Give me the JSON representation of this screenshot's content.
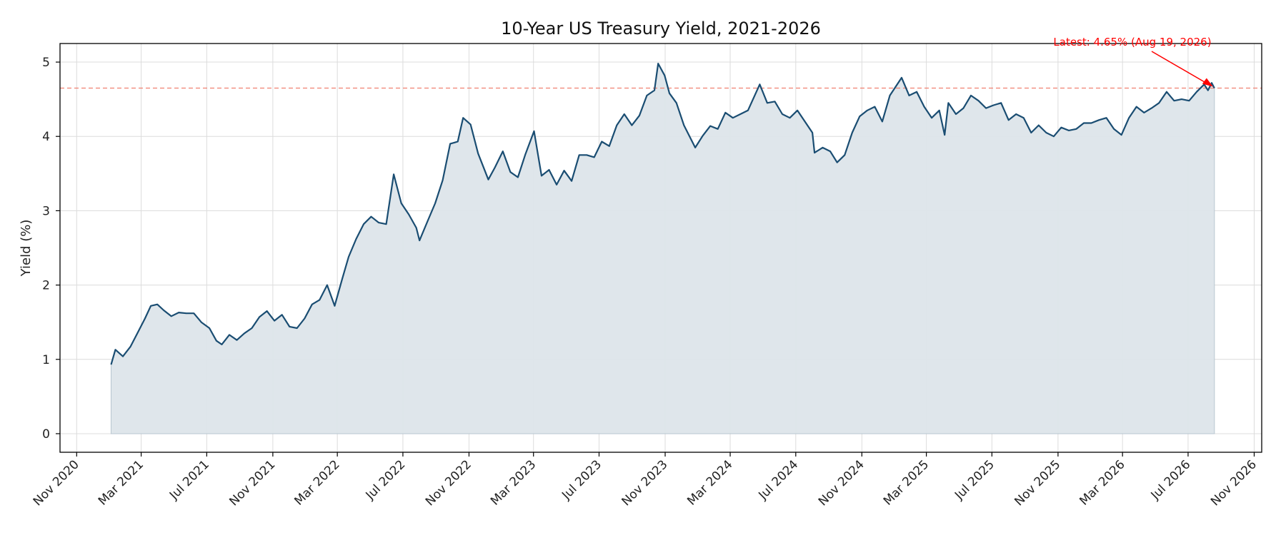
{
  "chart_data": {
    "type": "area",
    "title": "10-Year US Treasury Yield, 2021-2026",
    "xlabel": "",
    "ylabel": "Yield (%)",
    "x_ticks": [
      "Nov 2020",
      "Mar 2021",
      "Jul 2021",
      "Nov 2021",
      "Mar 2022",
      "Jul 2022",
      "Nov 2022",
      "Mar 2023",
      "Jul 2023",
      "Nov 2023",
      "Mar 2024",
      "Jul 2024",
      "Nov 2024",
      "Mar 2025",
      "Jul 2025",
      "Nov 2025",
      "Mar 2026",
      "Jul 2026",
      "Nov 2026"
    ],
    "x_tick_dates": [
      "2020-11-01",
      "2021-03-01",
      "2021-07-01",
      "2021-11-01",
      "2022-03-01",
      "2022-07-01",
      "2022-11-01",
      "2023-03-01",
      "2023-07-01",
      "2023-11-01",
      "2024-03-01",
      "2024-07-01",
      "2024-11-01",
      "2025-03-01",
      "2025-07-01",
      "2025-11-01",
      "2026-03-01",
      "2026-07-01",
      "2026-11-01"
    ],
    "y_ticks": [
      0,
      1,
      2,
      3,
      4,
      5
    ],
    "xlim": [
      "2020-10-01",
      "2026-11-15"
    ],
    "ylim": [
      -0.25,
      5.25
    ],
    "grid": true,
    "series": [
      {
        "color": "#1a4d72",
        "fill_color": "#dde5ea",
        "points": [
          [
            "2021-01-04",
            0.93
          ],
          [
            "2021-01-12",
            1.13
          ],
          [
            "2021-01-26",
            1.04
          ],
          [
            "2021-02-09",
            1.17
          ],
          [
            "2021-02-24",
            1.38
          ],
          [
            "2021-03-08",
            1.55
          ],
          [
            "2021-03-19",
            1.72
          ],
          [
            "2021-03-31",
            1.74
          ],
          [
            "2021-04-12",
            1.66
          ],
          [
            "2021-04-26",
            1.58
          ],
          [
            "2021-05-10",
            1.63
          ],
          [
            "2021-05-24",
            1.62
          ],
          [
            "2021-06-07",
            1.62
          ],
          [
            "2021-06-21",
            1.5
          ],
          [
            "2021-07-06",
            1.42
          ],
          [
            "2021-07-19",
            1.25
          ],
          [
            "2021-07-29",
            1.2
          ],
          [
            "2021-08-12",
            1.33
          ],
          [
            "2021-08-26",
            1.26
          ],
          [
            "2021-09-09",
            1.35
          ],
          [
            "2021-09-23",
            1.42
          ],
          [
            "2021-10-07",
            1.57
          ],
          [
            "2021-10-21",
            1.65
          ],
          [
            "2021-11-04",
            1.52
          ],
          [
            "2021-11-18",
            1.6
          ],
          [
            "2021-12-02",
            1.44
          ],
          [
            "2021-12-16",
            1.42
          ],
          [
            "2021-12-30",
            1.55
          ],
          [
            "2022-01-13",
            1.74
          ],
          [
            "2022-01-27",
            1.8
          ],
          [
            "2022-02-10",
            2.0
          ],
          [
            "2022-02-24",
            1.72
          ],
          [
            "2022-03-10",
            2.08
          ],
          [
            "2022-03-22",
            2.38
          ],
          [
            "2022-04-05",
            2.62
          ],
          [
            "2022-04-19",
            2.82
          ],
          [
            "2022-05-03",
            2.92
          ],
          [
            "2022-05-17",
            2.84
          ],
          [
            "2022-05-31",
            2.82
          ],
          [
            "2022-06-14",
            3.49
          ],
          [
            "2022-06-28",
            3.1
          ],
          [
            "2022-07-12",
            2.95
          ],
          [
            "2022-07-26",
            2.77
          ],
          [
            "2022-08-01",
            2.6
          ],
          [
            "2022-08-16",
            2.86
          ],
          [
            "2022-08-30",
            3.1
          ],
          [
            "2022-09-13",
            3.41
          ],
          [
            "2022-09-27",
            3.9
          ],
          [
            "2022-10-11",
            3.93
          ],
          [
            "2022-10-21",
            4.25
          ],
          [
            "2022-11-04",
            4.16
          ],
          [
            "2022-11-18",
            3.77
          ],
          [
            "2022-12-07",
            3.42
          ],
          [
            "2022-12-19",
            3.58
          ],
          [
            "2023-01-03",
            3.8
          ],
          [
            "2023-01-17",
            3.52
          ],
          [
            "2023-01-31",
            3.45
          ],
          [
            "2023-02-14",
            3.76
          ],
          [
            "2023-03-02",
            4.07
          ],
          [
            "2023-03-16",
            3.47
          ],
          [
            "2023-03-30",
            3.55
          ],
          [
            "2023-04-13",
            3.35
          ],
          [
            "2023-04-27",
            3.54
          ],
          [
            "2023-05-11",
            3.4
          ],
          [
            "2023-05-25",
            3.75
          ],
          [
            "2023-06-08",
            3.75
          ],
          [
            "2023-06-22",
            3.72
          ],
          [
            "2023-07-06",
            3.93
          ],
          [
            "2023-07-20",
            3.87
          ],
          [
            "2023-08-03",
            4.15
          ],
          [
            "2023-08-17",
            4.3
          ],
          [
            "2023-08-31",
            4.15
          ],
          [
            "2023-09-14",
            4.28
          ],
          [
            "2023-09-28",
            4.55
          ],
          [
            "2023-10-12",
            4.62
          ],
          [
            "2023-10-19",
            4.98
          ],
          [
            "2023-10-31",
            4.82
          ],
          [
            "2023-11-09",
            4.58
          ],
          [
            "2023-11-22",
            4.45
          ],
          [
            "2023-12-06",
            4.15
          ],
          [
            "2023-12-27",
            3.85
          ],
          [
            "2024-01-10",
            4.01
          ],
          [
            "2024-01-24",
            4.14
          ],
          [
            "2024-02-07",
            4.1
          ],
          [
            "2024-02-21",
            4.32
          ],
          [
            "2024-03-06",
            4.25
          ],
          [
            "2024-03-20",
            4.3
          ],
          [
            "2024-04-03",
            4.35
          ],
          [
            "2024-04-25",
            4.7
          ],
          [
            "2024-05-09",
            4.45
          ],
          [
            "2024-05-23",
            4.47
          ],
          [
            "2024-06-06",
            4.3
          ],
          [
            "2024-06-20",
            4.25
          ],
          [
            "2024-07-04",
            4.35
          ],
          [
            "2024-07-18",
            4.2
          ],
          [
            "2024-08-01",
            4.05
          ],
          [
            "2024-08-05",
            3.78
          ],
          [
            "2024-08-20",
            3.85
          ],
          [
            "2024-09-03",
            3.8
          ],
          [
            "2024-09-16",
            3.65
          ],
          [
            "2024-09-30",
            3.75
          ],
          [
            "2024-10-14",
            4.05
          ],
          [
            "2024-10-28",
            4.27
          ],
          [
            "2024-11-11",
            4.35
          ],
          [
            "2024-11-25",
            4.4
          ],
          [
            "2024-12-09",
            4.2
          ],
          [
            "2024-12-23",
            4.55
          ],
          [
            "2025-01-14",
            4.79
          ],
          [
            "2025-01-28",
            4.55
          ],
          [
            "2025-02-11",
            4.6
          ],
          [
            "2025-02-25",
            4.4
          ],
          [
            "2025-03-11",
            4.25
          ],
          [
            "2025-03-25",
            4.35
          ],
          [
            "2025-04-04",
            4.02
          ],
          [
            "2025-04-11",
            4.45
          ],
          [
            "2025-04-25",
            4.3
          ],
          [
            "2025-05-09",
            4.38
          ],
          [
            "2025-05-23",
            4.55
          ],
          [
            "2025-06-06",
            4.48
          ],
          [
            "2025-06-20",
            4.38
          ],
          [
            "2025-07-04",
            4.42
          ],
          [
            "2025-07-18",
            4.45
          ],
          [
            "2025-08-01",
            4.22
          ],
          [
            "2025-08-15",
            4.3
          ],
          [
            "2025-08-29",
            4.25
          ],
          [
            "2025-09-12",
            4.05
          ],
          [
            "2025-09-26",
            4.15
          ],
          [
            "2025-10-10",
            4.05
          ],
          [
            "2025-10-24",
            4.0
          ],
          [
            "2025-11-07",
            4.12
          ],
          [
            "2025-11-21",
            4.08
          ],
          [
            "2025-12-05",
            4.1
          ],
          [
            "2025-12-19",
            4.18
          ],
          [
            "2026-01-02",
            4.18
          ],
          [
            "2026-01-16",
            4.22
          ],
          [
            "2026-01-30",
            4.25
          ],
          [
            "2026-02-13",
            4.1
          ],
          [
            "2026-02-27",
            4.02
          ],
          [
            "2026-03-13",
            4.25
          ],
          [
            "2026-03-27",
            4.4
          ],
          [
            "2026-04-10",
            4.32
          ],
          [
            "2026-04-24",
            4.38
          ],
          [
            "2026-05-08",
            4.45
          ],
          [
            "2026-05-22",
            4.6
          ],
          [
            "2026-06-05",
            4.48
          ],
          [
            "2026-06-19",
            4.5
          ],
          [
            "2026-07-03",
            4.48
          ],
          [
            "2026-07-17",
            4.6
          ],
          [
            "2026-07-31",
            4.7
          ],
          [
            "2026-08-07",
            4.62
          ],
          [
            "2026-08-14",
            4.72
          ],
          [
            "2026-08-19",
            4.65
          ]
        ]
      }
    ],
    "reference_line": {
      "y": 4.65,
      "color": "#f08070",
      "style": "dashed"
    },
    "annotation": {
      "text": "Latest: 4.65% (Aug 19, 2026)",
      "target": [
        "2026-08-19",
        4.65
      ],
      "color": "#ff0000"
    }
  }
}
